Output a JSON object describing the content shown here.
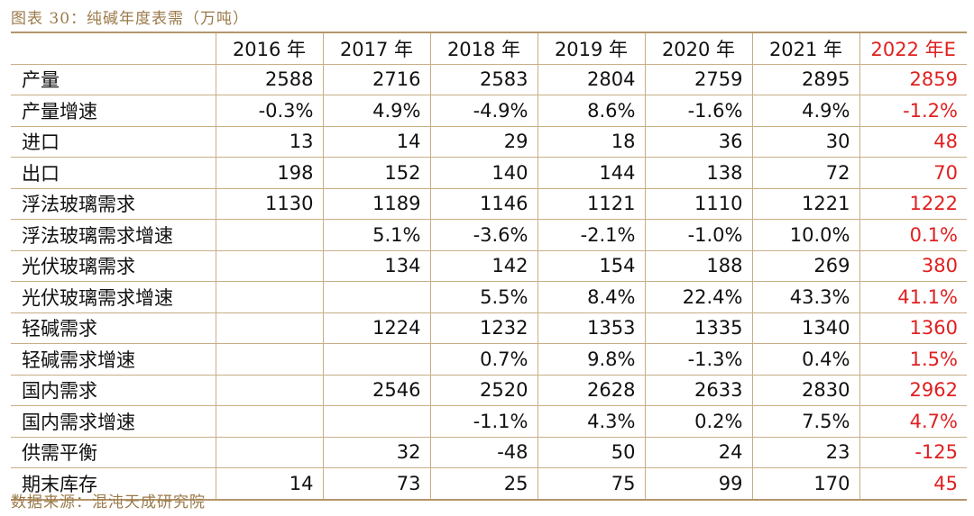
{
  "title": "图表 30：纯碱年度表需（万吨）",
  "source": "数据来源：混沌天成研究院",
  "colors": {
    "accent": "#b3956b",
    "estimate": "#e02020"
  },
  "table": {
    "headers": [
      "",
      "2016 年",
      "2017 年",
      "2018 年",
      "2019 年",
      "2020 年",
      "2021 年",
      "2022 年E"
    ],
    "rows": [
      {
        "label": "产量",
        "values": [
          "2588",
          "2716",
          "2583",
          "2804",
          "2759",
          "2895",
          "2859"
        ]
      },
      {
        "label": "产量增速",
        "values": [
          "-0.3%",
          "4.9%",
          "-4.9%",
          "8.6%",
          "-1.6%",
          "4.9%",
          "-1.2%"
        ]
      },
      {
        "label": "进口",
        "values": [
          "13",
          "14",
          "29",
          "18",
          "36",
          "30",
          "48"
        ]
      },
      {
        "label": "出口",
        "values": [
          "198",
          "152",
          "140",
          "144",
          "138",
          "72",
          "70"
        ]
      },
      {
        "label": "浮法玻璃需求",
        "values": [
          "1130",
          "1189",
          "1146",
          "1121",
          "1110",
          "1221",
          "1222"
        ]
      },
      {
        "label": "浮法玻璃需求增速",
        "values": [
          "",
          "5.1%",
          "-3.6%",
          "-2.1%",
          "-1.0%",
          "10.0%",
          "0.1%"
        ]
      },
      {
        "label": "光伏玻璃需求",
        "values": [
          "",
          "134",
          "142",
          "154",
          "188",
          "269",
          "380"
        ]
      },
      {
        "label": "光伏玻璃需求增速",
        "values": [
          "",
          "",
          "5.5%",
          "8.4%",
          "22.4%",
          "43.3%",
          "41.1%"
        ]
      },
      {
        "label": "轻碱需求",
        "values": [
          "",
          "1224",
          "1232",
          "1353",
          "1335",
          "1340",
          "1360"
        ]
      },
      {
        "label": "轻碱需求增速",
        "values": [
          "",
          "",
          "0.7%",
          "9.8%",
          "-1.3%",
          "0.4%",
          "1.5%"
        ]
      },
      {
        "label": "国内需求",
        "values": [
          "",
          "2546",
          "2520",
          "2628",
          "2633",
          "2830",
          "2962"
        ]
      },
      {
        "label": "国内需求增速",
        "values": [
          "",
          "",
          "-1.1%",
          "4.3%",
          "0.2%",
          "7.5%",
          "4.7%"
        ]
      },
      {
        "label": "供需平衡",
        "values": [
          "",
          "32",
          "-48",
          "50",
          "24",
          "23",
          "-125"
        ]
      },
      {
        "label": "期末库存",
        "values": [
          "14",
          "73",
          "25",
          "75",
          "99",
          "170",
          "45"
        ]
      }
    ]
  }
}
